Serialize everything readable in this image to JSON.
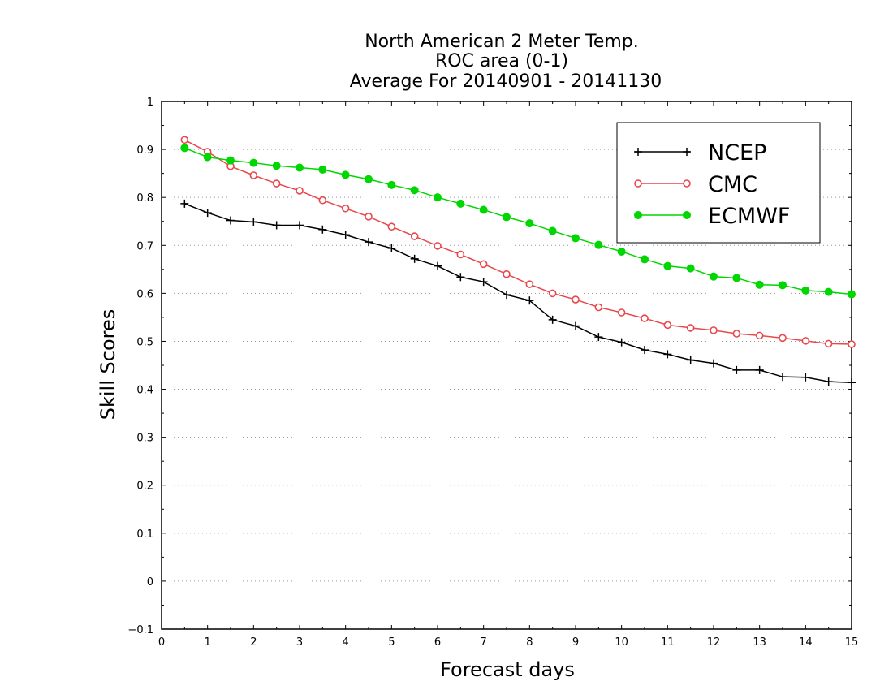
{
  "chart_data": {
    "type": "line",
    "title": [
      "North American 2 Meter Temp.",
      "ROC area (0-1)",
      "Average For 20140901 - 20141130"
    ],
    "xlabel": "Forecast days",
    "ylabel": "Skill Scores",
    "xlim": [
      0,
      15
    ],
    "ylim": [
      -0.1,
      1
    ],
    "xticks": [
      0,
      1,
      2,
      3,
      4,
      5,
      6,
      7,
      8,
      9,
      10,
      11,
      12,
      13,
      14,
      15
    ],
    "yticks": [
      -0.1,
      0,
      0.1,
      0.2,
      0.3,
      0.4,
      0.5,
      0.6,
      0.7,
      0.8,
      0.9,
      1
    ],
    "ytick_labels": [
      "−0.1",
      "0",
      "0.1",
      "0.2",
      "0.3",
      "0.4",
      "0.5",
      "0.6",
      "0.7",
      "0.8",
      "0.9",
      "1"
    ],
    "grid": "horizontal dotted",
    "legend_position": "top-right",
    "x": [
      0.5,
      1,
      1.5,
      2,
      2.5,
      3,
      3.5,
      4,
      4.5,
      5,
      5.5,
      6,
      6.5,
      7,
      7.5,
      8,
      8.5,
      9,
      9.5,
      10,
      10.5,
      11,
      11.5,
      12,
      12.5,
      13,
      13.5,
      14,
      14.5,
      15
    ],
    "series": [
      {
        "name": "NCEP",
        "color": "#000000",
        "marker": "plus",
        "values": [
          0.787,
          0.768,
          0.752,
          0.749,
          0.742,
          0.742,
          0.733,
          0.722,
          0.707,
          0.694,
          0.672,
          0.657,
          0.634,
          0.624,
          0.597,
          0.585,
          0.545,
          0.532,
          0.509,
          0.498,
          0.482,
          0.473,
          0.461,
          0.454,
          0.44,
          0.44,
          0.426,
          0.425,
          0.416,
          0.414
        ]
      },
      {
        "name": "CMC",
        "color": "#e8474c",
        "marker": "open-circle",
        "values": [
          0.92,
          0.895,
          0.865,
          0.846,
          0.829,
          0.814,
          0.794,
          0.777,
          0.76,
          0.739,
          0.719,
          0.699,
          0.681,
          0.661,
          0.64,
          0.619,
          0.6,
          0.587,
          0.571,
          0.56,
          0.548,
          0.534,
          0.528,
          0.523,
          0.516,
          0.512,
          0.507,
          0.501,
          0.495,
          0.494
        ]
      },
      {
        "name": "ECMWF",
        "color": "#00d600",
        "marker": "filled-circle",
        "values": [
          0.903,
          0.884,
          0.877,
          0.872,
          0.866,
          0.862,
          0.858,
          0.847,
          0.838,
          0.826,
          0.815,
          0.8,
          0.787,
          0.774,
          0.759,
          0.746,
          0.73,
          0.715,
          0.701,
          0.687,
          0.671,
          0.657,
          0.652,
          0.635,
          0.632,
          0.618,
          0.617,
          0.606,
          0.603,
          0.598
        ]
      }
    ]
  }
}
